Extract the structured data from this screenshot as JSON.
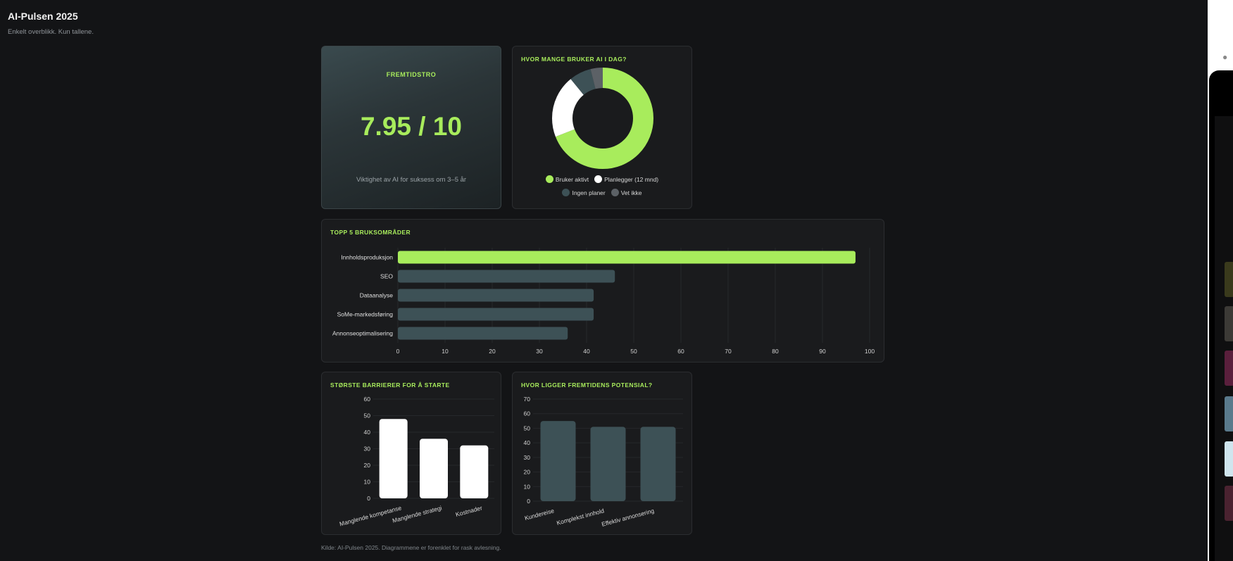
{
  "header": {
    "title": "AI-Pulsen 2025",
    "subtitle": "Enkelt overblikk. Kun tallene."
  },
  "score_card": {
    "label": "FREMTIDSTRO",
    "value": "7.95 / 10",
    "description": "Viktighet av AI for suksess om 3–5 år"
  },
  "colors": {
    "accent": "#a8ec5c",
    "slate": "#3d5156",
    "white": "#ffffff",
    "gray": "#5c6166"
  },
  "footer": {
    "text": "Kilde: AI-Pulsen 2025. Diagrammene er forenklet for rask avlesning."
  },
  "chart_data": [
    {
      "id": "donut",
      "type": "pie",
      "title": "HVOR MANGE BRUKER AI I DAG?",
      "categories": [
        "Bruker aktivt",
        "Planlegger (12 mnd)",
        "Ingen planer",
        "Vet ikke"
      ],
      "values": [
        69,
        20,
        7,
        4
      ],
      "colors": [
        "#a8ec5c",
        "#ffffff",
        "#3d5156",
        "#5c6166"
      ],
      "donut": true
    },
    {
      "id": "hbar",
      "type": "bar",
      "orientation": "horizontal",
      "title": "TOPP 5 BRUKSOMRÅDER",
      "categories": [
        "Innholdsproduksjon",
        "SEO",
        "Dataanalyse",
        "SoMe-markedsføring",
        "Annonseoptimalisering"
      ],
      "values": [
        97,
        46,
        41.5,
        41.5,
        36
      ],
      "xlim": [
        0,
        100
      ],
      "xticks": [
        "0",
        "10",
        "20",
        "30",
        "40",
        "50",
        "60",
        "70",
        "80",
        "90",
        "100"
      ],
      "highlight_color": "#a8ec5c",
      "bar_color": "#3d5156"
    },
    {
      "id": "barriers",
      "type": "bar",
      "title": "STØRSTE BARRIERER FOR Å STARTE",
      "categories": [
        "Manglende kompetanse",
        "Manglende strategi",
        "Kostnader"
      ],
      "values": [
        48,
        36,
        32
      ],
      "ylim": [
        0,
        60
      ],
      "yticks": [
        "0",
        "10",
        "20",
        "30",
        "40",
        "50",
        "60"
      ],
      "bar_color": "#ffffff"
    },
    {
      "id": "potential",
      "type": "bar",
      "title": "HVOR LIGGER FREMTIDENS POTENSIAL?",
      "categories": [
        "Kundereise",
        "Komplekst innhold",
        "Effektiv annonsering"
      ],
      "values": [
        55,
        51,
        51
      ],
      "ylim": [
        0,
        70
      ],
      "yticks": [
        "0",
        "10",
        "20",
        "30",
        "40",
        "50",
        "60",
        "70"
      ],
      "bar_color": "#3d5156"
    }
  ]
}
